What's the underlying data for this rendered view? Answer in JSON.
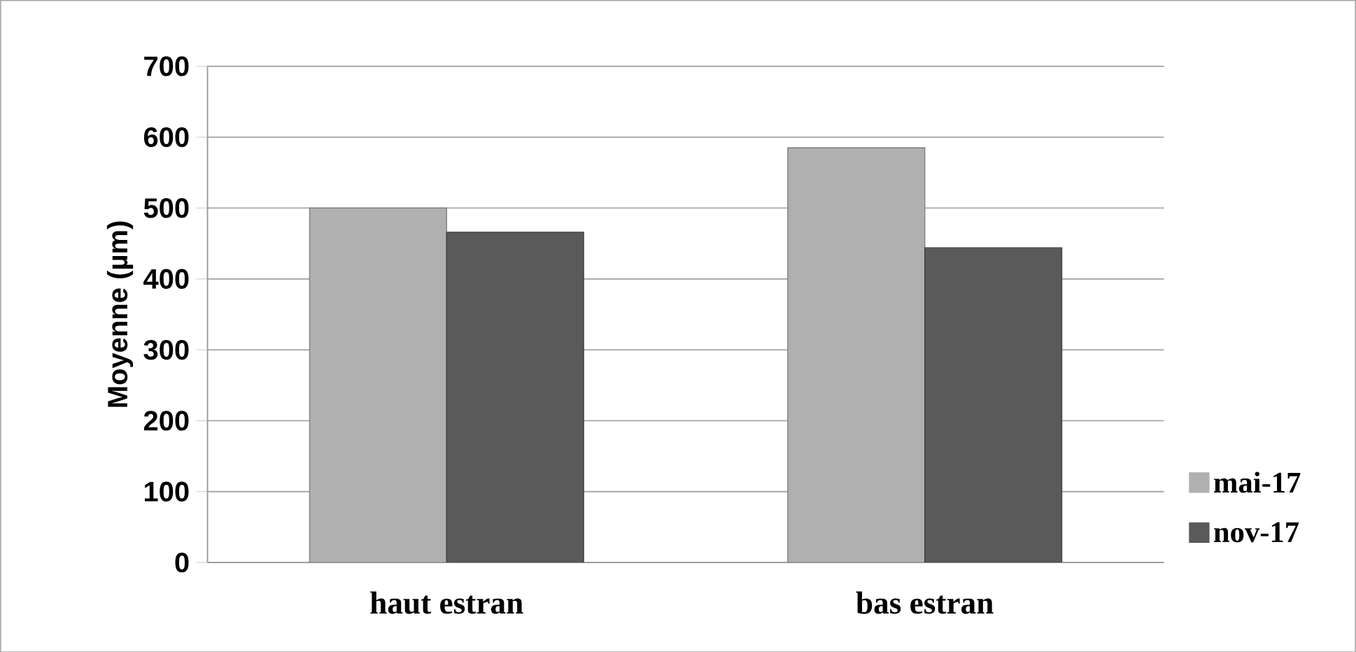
{
  "chart_data": {
    "type": "bar",
    "ylabel": "Moyenne (µm)",
    "categories": [
      "haut estran",
      "bas estran"
    ],
    "series": [
      {
        "name": "mai-17",
        "color": "#b0b0b0",
        "values": [
          500,
          585
        ]
      },
      {
        "name": "nov-17",
        "color": "#5a5a5a",
        "values": [
          466,
          444
        ]
      }
    ],
    "ylim": [
      0,
      700
    ],
    "yticks": [
      0,
      100,
      200,
      300,
      400,
      500,
      600,
      700
    ],
    "grid": "y",
    "legend": "right"
  }
}
